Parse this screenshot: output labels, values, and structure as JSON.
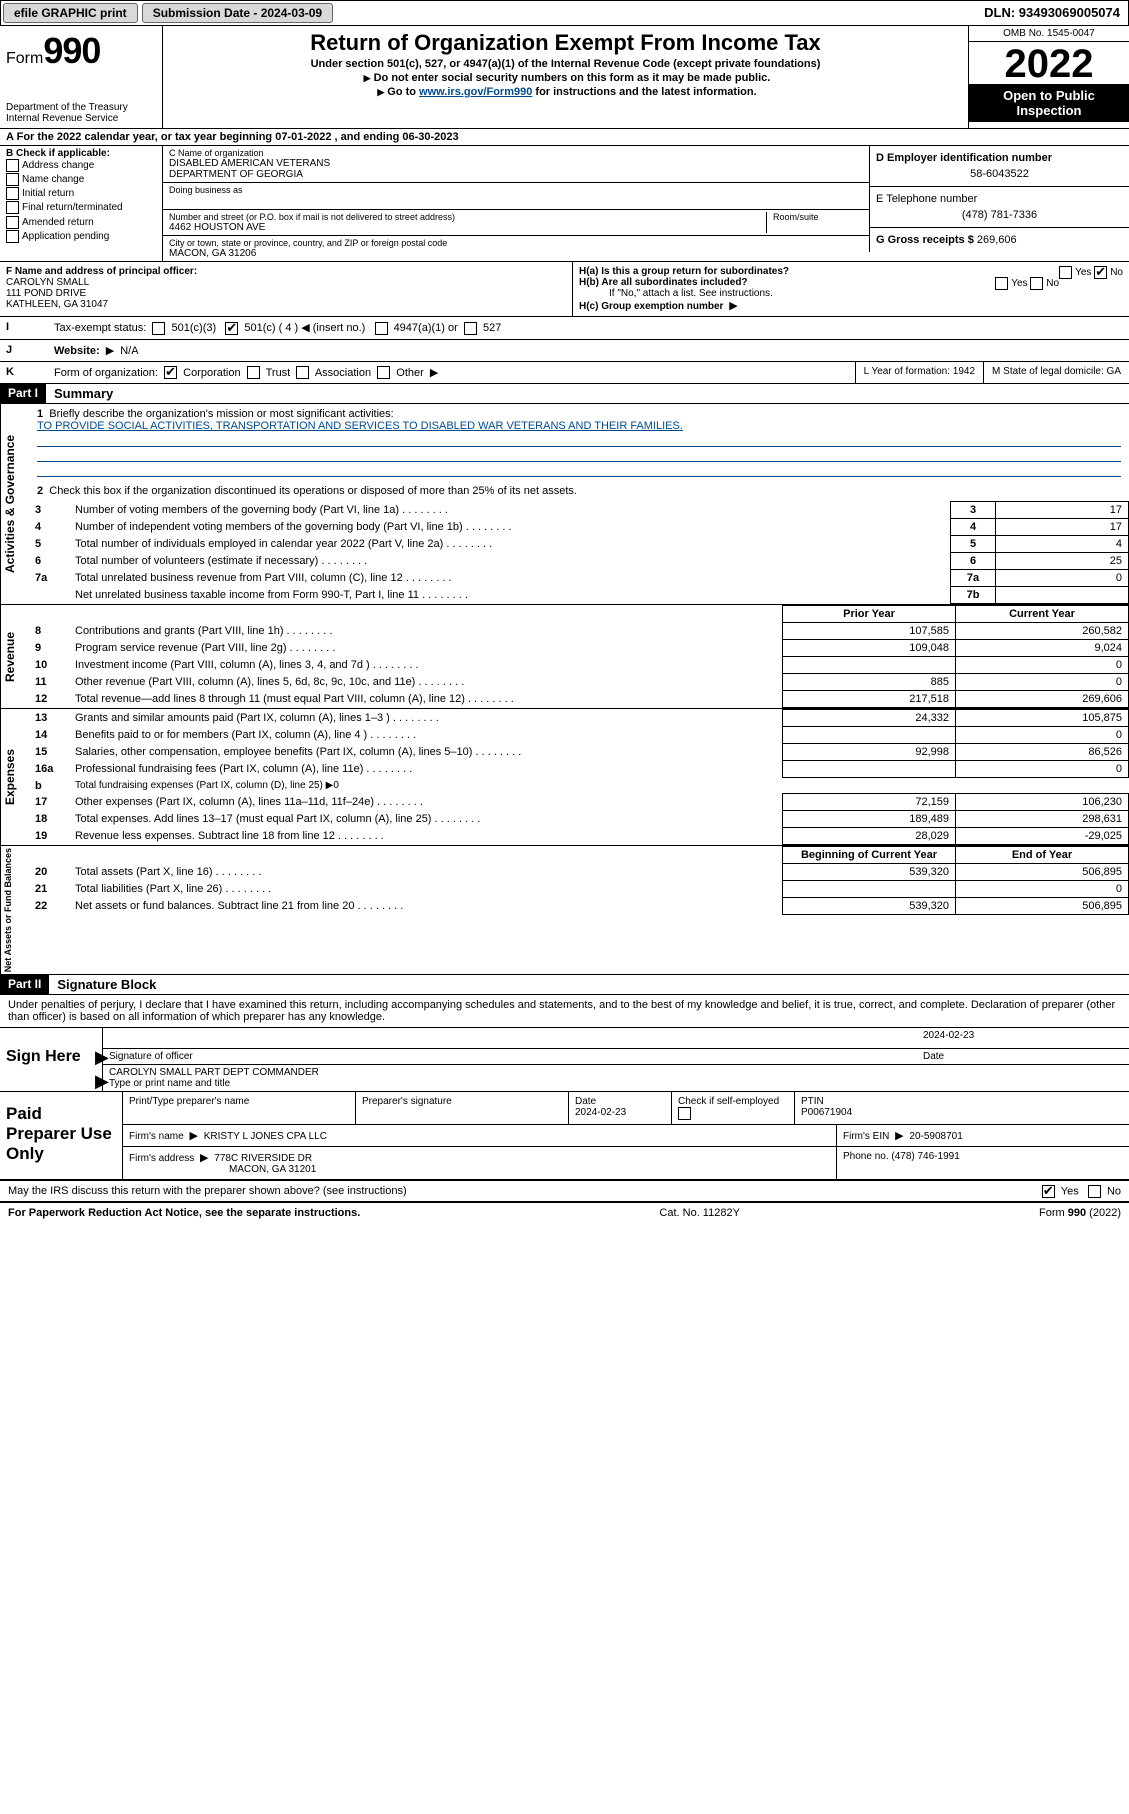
{
  "topbar": {
    "efile_label": "efile GRAPHIC print",
    "submission_label": "Submission Date - 2024-03-09",
    "dln_label": "DLN: 93493069005074"
  },
  "header": {
    "form_word": "Form",
    "form_num": "990",
    "dept1": "Department of the Treasury",
    "dept2": "Internal Revenue Service",
    "title": "Return of Organization Exempt From Income Tax",
    "sub1": "Under section 501(c), 527, or 4947(a)(1) of the Internal Revenue Code (except private foundations)",
    "sub2": "Do not enter social security numbers on this form as it may be made public.",
    "sub3_pre": "Go to ",
    "sub3_link": "www.irs.gov/Form990",
    "sub3_post": " for instructions and the latest information.",
    "omb": "OMB No. 1545-0047",
    "year": "2022",
    "pub": "Open to Public Inspection"
  },
  "lineA": "For the 2022 calendar year, or tax year beginning 07-01-2022    , and ending 06-30-2023",
  "boxB": {
    "title": "B Check if applicable:",
    "addr": "Address change",
    "name": "Name change",
    "init": "Initial return",
    "final": "Final return/terminated",
    "amend": "Amended return",
    "app": "Application pending"
  },
  "boxC": {
    "label": "C Name of organization",
    "name1": "DISABLED AMERICAN VETERANS",
    "name2": "DEPARTMENT OF GEORGIA",
    "dba": "Doing business as",
    "street_label": "Number and street (or P.O. box if mail is not delivered to street address)",
    "room_label": "Room/suite",
    "street": "4462 HOUSTON AVE",
    "city_label": "City or town, state or province, country, and ZIP or foreign postal code",
    "city": "MACON, GA  31206"
  },
  "boxD": {
    "label": "D Employer identification number",
    "val": "58-6043522"
  },
  "boxE": {
    "label": "E Telephone number",
    "val": "(478) 781-7336"
  },
  "boxG": {
    "label": "G Gross receipts $",
    "val": "269,606"
  },
  "boxF": {
    "label": "F Name and address of principal officer:",
    "name": "CAROLYN SMALL",
    "addr1": "111 POND DRIVE",
    "addr2": "KATHLEEN, GA  31047"
  },
  "boxH": {
    "ha": "H(a)  Is this a group return for subordinates?",
    "hb": "H(b)  Are all subordinates included?",
    "hb_note": "If \"No,\" attach a list. See instructions.",
    "hc": "H(c)  Group exemption number",
    "yes": "Yes",
    "no": "No"
  },
  "status": {
    "lbl": "I",
    "text": "Tax-exempt status:",
    "c3": "501(c)(3)",
    "c4": "501(c) ( 4 )",
    "insert": "(insert no.)",
    "a1": "4947(a)(1) or",
    "s527": "527"
  },
  "website": {
    "lbl": "J",
    "text": "Website:",
    "val": "N/A"
  },
  "korg": {
    "lbl": "K",
    "text": "Form of organization:",
    "corp": "Corporation",
    "trust": "Trust",
    "assoc": "Association",
    "other": "Other",
    "L": "L Year of formation: 1942",
    "M": "M State of legal domicile: GA"
  },
  "part1": {
    "hdr": "Part I",
    "title": "Summary",
    "q1": "Briefly describe the organization's mission or most significant activities:",
    "mission": "TO PROVIDE SOCIAL ACTIVITIES, TRANSPORTATION AND SERVICES TO DISABLED WAR VETERANS AND THEIR FAMILIES.",
    "q2": "Check this box      if the organization discontinued its operations or disposed of more than 25% of its net assets.",
    "rows_gov": [
      {
        "n": "3",
        "t": "Number of voting members of the governing body (Part VI, line 1a)",
        "b": "3",
        "v": "17"
      },
      {
        "n": "4",
        "t": "Number of independent voting members of the governing body (Part VI, line 1b)",
        "b": "4",
        "v": "17"
      },
      {
        "n": "5",
        "t": "Total number of individuals employed in calendar year 2022 (Part V, line 2a)",
        "b": "5",
        "v": "4"
      },
      {
        "n": "6",
        "t": "Total number of volunteers (estimate if necessary)",
        "b": "6",
        "v": "25"
      },
      {
        "n": "7a",
        "t": "Total unrelated business revenue from Part VIII, column (C), line 12",
        "b": "7a",
        "v": "0"
      },
      {
        "n": "",
        "t": "Net unrelated business taxable income from Form 990-T, Part I, line 11",
        "b": "7b",
        "v": ""
      }
    ],
    "col_prior": "Prior Year",
    "col_curr": "Current Year",
    "rows_rev": [
      {
        "n": "8",
        "t": "Contributions and grants (Part VIII, line 1h)",
        "p": "107,585",
        "c": "260,582"
      },
      {
        "n": "9",
        "t": "Program service revenue (Part VIII, line 2g)",
        "p": "109,048",
        "c": "9,024"
      },
      {
        "n": "10",
        "t": "Investment income (Part VIII, column (A), lines 3, 4, and 7d )",
        "p": "",
        "c": "0"
      },
      {
        "n": "11",
        "t": "Other revenue (Part VIII, column (A), lines 5, 6d, 8c, 9c, 10c, and 11e)",
        "p": "885",
        "c": "0"
      },
      {
        "n": "12",
        "t": "Total revenue—add lines 8 through 11 (must equal Part VIII, column (A), line 12)",
        "p": "217,518",
        "c": "269,606"
      }
    ],
    "rows_exp": [
      {
        "n": "13",
        "t": "Grants and similar amounts paid (Part IX, column (A), lines 1–3 )",
        "p": "24,332",
        "c": "105,875"
      },
      {
        "n": "14",
        "t": "Benefits paid to or for members (Part IX, column (A), line 4 )",
        "p": "",
        "c": "0"
      },
      {
        "n": "15",
        "t": "Salaries, other compensation, employee benefits (Part IX, column (A), lines 5–10)",
        "p": "92,998",
        "c": "86,526"
      },
      {
        "n": "16a",
        "t": "Professional fundraising fees (Part IX, column (A), line 11e)",
        "p": "",
        "c": "0"
      },
      {
        "n": "b",
        "t": "Total fundraising expenses (Part IX, column (D), line 25)  ▶0",
        "p": null,
        "c": null
      },
      {
        "n": "17",
        "t": "Other expenses (Part IX, column (A), lines 11a–11d, 11f–24e)",
        "p": "72,159",
        "c": "106,230"
      },
      {
        "n": "18",
        "t": "Total expenses. Add lines 13–17 (must equal Part IX, column (A), line 25)",
        "p": "189,489",
        "c": "298,631"
      },
      {
        "n": "19",
        "t": "Revenue less expenses. Subtract line 18 from line 12",
        "p": "28,029",
        "c": "-29,025"
      }
    ],
    "col_begin": "Beginning of Current Year",
    "col_end": "End of Year",
    "rows_net": [
      {
        "n": "20",
        "t": "Total assets (Part X, line 16)",
        "p": "539,320",
        "c": "506,895"
      },
      {
        "n": "21",
        "t": "Total liabilities (Part X, line 26)",
        "p": "",
        "c": "0"
      },
      {
        "n": "22",
        "t": "Net assets or fund balances. Subtract line 21 from line 20",
        "p": "539,320",
        "c": "506,895"
      }
    ],
    "vlabels": {
      "gov": "Activities & Governance",
      "rev": "Revenue",
      "exp": "Expenses",
      "net": "Net Assets or Fund Balances"
    }
  },
  "part2": {
    "hdr": "Part II",
    "title": "Signature Block",
    "decl": "Under penalties of perjury, I declare that I have examined this return, including accompanying schedules and statements, and to the best of my knowledge and belief, it is true, correct, and complete. Declaration of preparer (other than officer) is based on all information of which preparer has any knowledge.",
    "sign_here": "Sign Here",
    "sig_officer": "Signature of officer",
    "sig_date": "2024-02-23",
    "date_lbl": "Date",
    "officer_name": "CAROLYN SMALL PART DEPT COMMANDER",
    "officer_sub": "Type or print name and title",
    "paid": "Paid Preparer Use Only",
    "prep_name_lbl": "Print/Type preparer's name",
    "prep_sig_lbl": "Preparer's signature",
    "prep_date_lbl": "Date",
    "prep_date": "2024-02-23",
    "prep_check": "Check        if self-employed",
    "ptin_lbl": "PTIN",
    "ptin": "P00671904",
    "firm_name_lbl": "Firm's name    ",
    "firm_name": "KRISTY L JONES CPA LLC",
    "firm_ein_lbl": "Firm's EIN ",
    "firm_ein": "20-5908701",
    "firm_addr_lbl": "Firm's address ",
    "firm_addr1": "778C RIVERSIDE DR",
    "firm_addr2": "MACON, GA  31201",
    "phone_lbl": "Phone no. ",
    "phone": "(478) 746-1991",
    "discuss": "May the IRS discuss this return with the preparer shown above? (see instructions)",
    "yes": "Yes",
    "no": "No"
  },
  "footer": {
    "left": "For Paperwork Reduction Act Notice, see the separate instructions.",
    "mid": "Cat. No. 11282Y",
    "right": "Form 990 (2022)"
  }
}
